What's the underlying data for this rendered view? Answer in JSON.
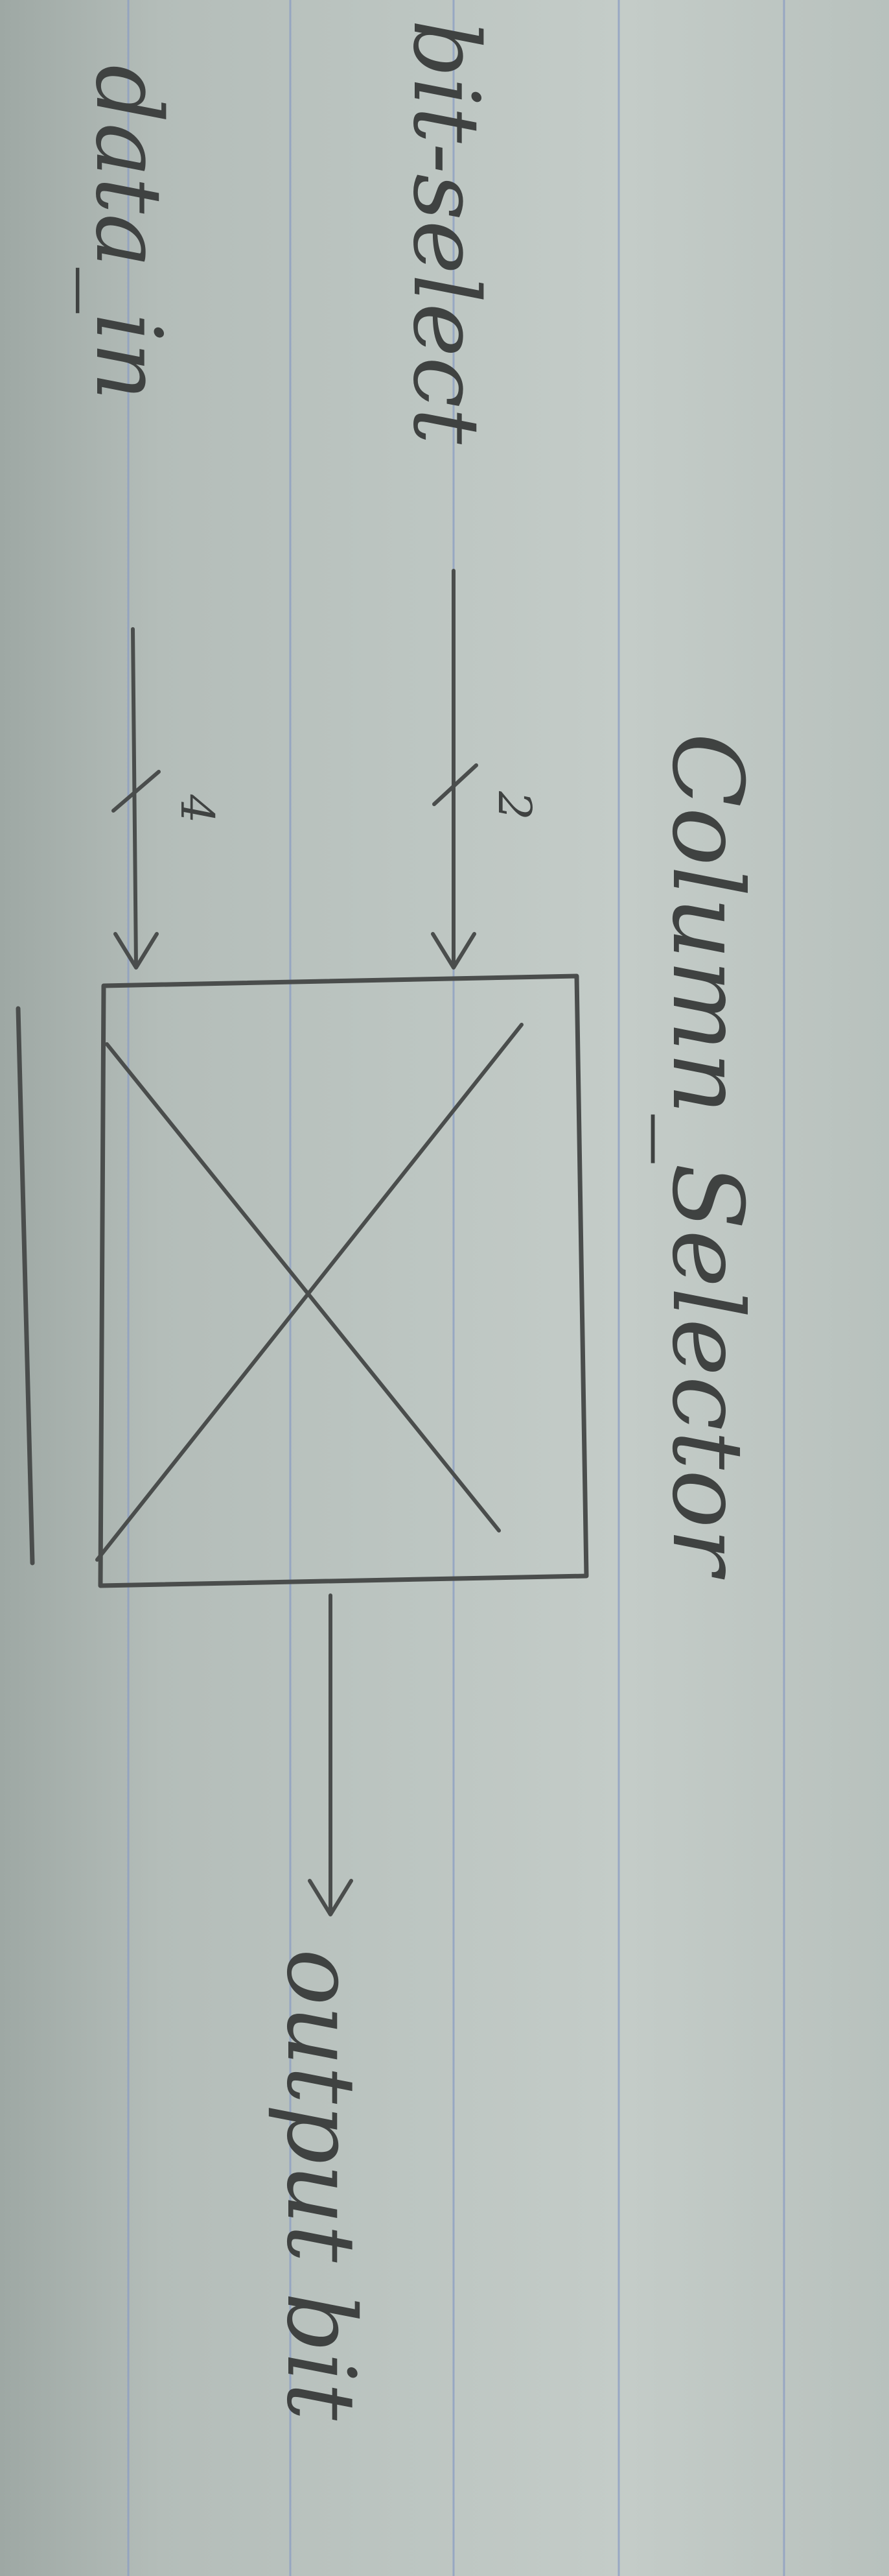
{
  "diagram": {
    "title": "Column_Selector",
    "inputs": [
      {
        "label": "bit-select",
        "width": "2"
      },
      {
        "label": "data_in",
        "width": "4"
      }
    ],
    "output": {
      "label": "output bit"
    },
    "ink_color": "#4a4d4c",
    "rule_color": "#8b9dc3",
    "paper_color": "#bcc5c1"
  }
}
